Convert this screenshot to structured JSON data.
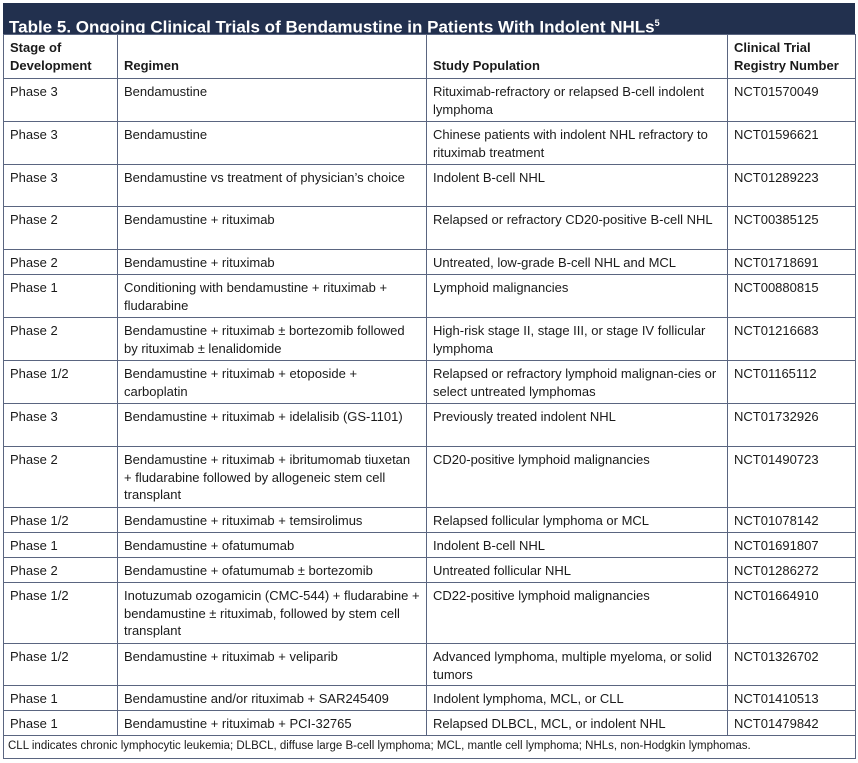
{
  "title": "Table 5. Ongoing Clinical Trials of Bendamustine in Patients With Indolent NHLs",
  "title_ref": "5",
  "header_color": "#22304e",
  "columns": [
    "Stage of Development",
    "Regimen",
    "Study Population",
    "Clinical Trial Registry Number"
  ],
  "rows": [
    [
      "Phase 3",
      "Bendamustine",
      "Rituximab-refractory or relapsed B-cell indolent lymphoma",
      "NCT01570049"
    ],
    [
      "Phase 3",
      "Bendamustine",
      "Chinese patients with indolent NHL refractory to rituximab treatment",
      "NCT01596621"
    ],
    [
      "Phase 3",
      "Bendamustine vs treatment of physician’s choice",
      "Indolent B-cell NHL",
      "NCT01289223"
    ],
    [
      "Phase 2",
      "Bendamustine + rituximab",
      "Relapsed or refractory CD20-positive B-cell NHL",
      "NCT00385125"
    ],
    [
      "Phase 2",
      "Bendamustine + rituximab",
      "Untreated, low-grade B-cell NHL and MCL",
      "NCT01718691"
    ],
    [
      "Phase 1",
      "Conditioning with bendamustine + rituximab + fludarabine",
      "Lymphoid malignancies",
      "NCT00880815"
    ],
    [
      "Phase 2",
      "Bendamustine + rituximab ± bortezomib followed by rituximab ± lenalidomide",
      "High-risk stage II, stage III, or stage IV follicular lymphoma",
      "NCT01216683"
    ],
    [
      "Phase 1/2",
      "Bendamustine + rituximab + etoposide + carboplatin",
      "Relapsed or refractory lymphoid malignan-cies or select untreated lymphomas",
      "NCT01165112"
    ],
    [
      "Phase 3",
      "Bendamustine + rituximab + idelalisib (GS-1101)",
      "Previously treated indolent NHL",
      "NCT01732926"
    ],
    [
      "Phase 2",
      "Bendamustine + rituximab + ibritumomab tiuxetan + fludarabine followed by allogeneic stem cell transplant",
      "CD20-positive lymphoid malignancies",
      "NCT01490723"
    ],
    [
      "Phase 1/2",
      "Bendamustine + rituximab + temsirolimus",
      "Relapsed follicular lymphoma or MCL",
      "NCT01078142"
    ],
    [
      "Phase 1",
      "Bendamustine + ofatumumab",
      "Indolent B-cell NHL",
      "NCT01691807"
    ],
    [
      "Phase 2",
      "Bendamustine + ofatumumab ± bortezomib",
      "Untreated follicular NHL",
      "NCT01286272"
    ],
    [
      "Phase 1/2",
      "Inotuzumab ozogamicin (CMC-544) + fludarabine + bendamustine ± rituximab, followed by stem cell transplant",
      "CD22-positive lymphoid malignancies",
      "NCT01664910"
    ],
    [
      "Phase 1/2",
      "Bendamustine + rituximab + veliparib",
      "Advanced lymphoma, multiple myeloma, or solid tumors",
      "NCT01326702"
    ],
    [
      "Phase 1",
      "Bendamustine and/or rituximab + SAR245409",
      "Indolent lymphoma, MCL, or CLL",
      "NCT01410513"
    ],
    [
      "Phase 1",
      "Bendamustine + rituximab + PCI-32765",
      "Relapsed DLBCL, MCL, or indolent NHL",
      "NCT01479842"
    ]
  ],
  "footnote": "CLL indicates chronic lymphocytic leukemia; DLBCL, diffuse large B-cell lymphoma; MCL, mantle cell lymphoma; NHLs, non-Hodgkin lymphomas."
}
